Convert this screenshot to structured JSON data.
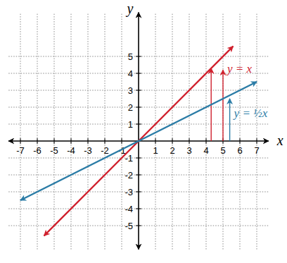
{
  "chart_data": {
    "type": "line",
    "x_label": "x",
    "y_label": "y",
    "xlim": [
      -7.7,
      7.7
    ],
    "ylim": [
      -6.4,
      7.6
    ],
    "xticks": [
      -7,
      -6,
      -5,
      -4,
      -3,
      -2,
      -1,
      1,
      2,
      3,
      4,
      5,
      6,
      7
    ],
    "yticks": [
      -5,
      -4,
      -3,
      -2,
      -1,
      1,
      2,
      3,
      4,
      5
    ],
    "grid": true,
    "series": [
      {
        "name": "y = x",
        "color": "#d0212e",
        "x": [
          -5.6,
          0,
          5.6
        ],
        "values": [
          -5.6,
          0,
          5.6
        ],
        "arrows": [
          {
            "x": 4.3,
            "y": [
              0,
              4.3
            ]
          },
          {
            "x": 5.0,
            "y": [
              0,
              4.2
            ]
          }
        ]
      },
      {
        "name": "y = ½x",
        "color": "#2b7ca6",
        "x": [
          -7,
          0,
          7
        ],
        "values": [
          -3.5,
          0,
          3.5
        ],
        "arrows": [
          {
            "x": 5.4,
            "y": [
              0,
              2.5
            ]
          }
        ]
      }
    ]
  }
}
